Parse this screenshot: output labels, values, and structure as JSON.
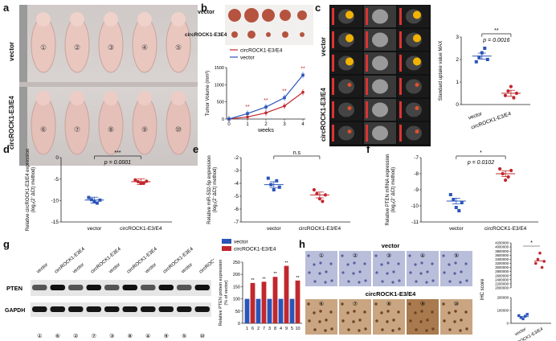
{
  "panels": {
    "a": {
      "label": "a",
      "group_top": "vector",
      "group_bottom": "circROCK1-E3/E4",
      "mouse_ids_top": [
        "①",
        "②",
        "③",
        "④",
        "⑤"
      ],
      "mouse_ids_bottom": [
        "⑥",
        "⑦",
        "⑧",
        "⑨",
        "⑩"
      ]
    },
    "b": {
      "label": "b",
      "photo_top": "vector",
      "photo_bottom": "circROCK1-E3E4"
    },
    "c": {
      "label": "c",
      "group_top": "vector",
      "group_bottom": "circROCK1-E3/E4"
    },
    "d": {
      "label": "d"
    },
    "e": {
      "label": "e"
    },
    "f": {
      "label": "f"
    },
    "g": {
      "label": "g",
      "lanes": [
        "vector",
        "circROCK1-E3E4",
        "vector",
        "circROCK1-E3E4",
        "vector",
        "circROCK1-E3E4",
        "vector",
        "circROCK1-E3E4",
        "vector",
        "circROCK1-E3E4"
      ],
      "proteins": [
        "PTEN",
        "GAPDH"
      ],
      "lane_ids": [
        "①",
        "⑥",
        "②",
        "⑦",
        "③",
        "⑧",
        "④",
        "⑨",
        "⑤",
        "⑩"
      ]
    },
    "h": {
      "label": "h",
      "group_top": "vector",
      "group_bottom": "circROCK1-E3/E4",
      "ids_top": [
        "①",
        "②",
        "③",
        "④",
        "⑤"
      ],
      "ids_bottom": [
        "⑥",
        "⑦",
        "⑧",
        "⑨",
        "⑩"
      ]
    }
  },
  "chart_data": [
    {
      "id": "b",
      "type": "line",
      "xlabel": "weeks",
      "ylabel": "Tumor Volume (mm³)",
      "x": [
        0,
        1,
        2,
        3,
        4
      ],
      "ylim": [
        0,
        1500
      ],
      "yticks": [
        0,
        500,
        1000,
        1500
      ],
      "series": [
        {
          "name": "circROCK1-E3/E4",
          "color": "#c0282d",
          "values": [
            0,
            60,
            180,
            380,
            780
          ]
        },
        {
          "name": "vector",
          "color": "#2a55b8",
          "values": [
            0,
            160,
            350,
            620,
            1280
          ]
        }
      ],
      "annotations": [
        "**",
        "**",
        "**",
        "**"
      ]
    },
    {
      "id": "c",
      "type": "scatter",
      "ylabel": "Standard uptake value MAX",
      "ylim": [
        0,
        3
      ],
      "yticks": [
        0,
        1,
        2,
        3
      ],
      "categories": [
        "vector",
        "circROCK1-E3/E4"
      ],
      "groups": [
        {
          "name": "vector",
          "color": "#2a55b8",
          "values": [
            1.9,
            2.1,
            2.3,
            2.5,
            2.0
          ],
          "mean": 2.15
        },
        {
          "name": "circROCK1-E3/E4",
          "color": "#c0282d",
          "values": [
            0.4,
            0.6,
            0.8,
            0.3,
            0.5
          ],
          "mean": 0.5
        }
      ],
      "stars": "**",
      "pvalue": "p = 0.0016"
    },
    {
      "id": "d",
      "type": "scatter",
      "ylabel": "Relative circROCK1-E3/E4 expression (log₂(2⁻ΔCt) method)",
      "ylim": [
        -15,
        0
      ],
      "yticks": [
        -15,
        -10,
        -5,
        0
      ],
      "categories": [
        "vector",
        "circROCK1-E3/E4"
      ],
      "groups": [
        {
          "name": "vector",
          "color": "#2a55b8",
          "values": [
            -9.3,
            -9.8,
            -10.3,
            -10.6,
            -9.9
          ],
          "mean": -9.9
        },
        {
          "name": "circROCK1-E3/E4",
          "color": "#c0282d",
          "values": [
            -5.2,
            -5.6,
            -6.0,
            -5.9,
            -5.5
          ],
          "mean": -5.6
        }
      ],
      "stars": "***",
      "pvalue": "p = 0.0001"
    },
    {
      "id": "e",
      "type": "scatter",
      "ylabel": "Relative miR-532-5p expression (log₂(2⁻ΔCt) method)",
      "ylim": [
        -7,
        -2
      ],
      "yticks": [
        -7,
        -6,
        -5,
        -4,
        -3,
        -2
      ],
      "categories": [
        "vector",
        "circROCK1-E3/E4"
      ],
      "groups": [
        {
          "name": "vector",
          "color": "#2a55b8",
          "values": [
            -3.6,
            -4.1,
            -4.5,
            -3.8,
            -4.3
          ],
          "mean": -4.1
        },
        {
          "name": "circROCK1-E3/E4",
          "color": "#c0282d",
          "values": [
            -4.5,
            -4.8,
            -5.2,
            -5.4,
            -4.9
          ],
          "mean": -4.9
        }
      ],
      "stars": "n.s",
      "pvalue": ""
    },
    {
      "id": "f",
      "type": "scatter",
      "ylabel": "Relative PTEN mRNA expression (log₂(2⁻ΔCt) method)",
      "ylim": [
        -11,
        -7
      ],
      "yticks": [
        -11,
        -10,
        -9,
        -8,
        -7
      ],
      "categories": [
        "vector",
        "circROCK1-E3/E4"
      ],
      "groups": [
        {
          "name": "vector",
          "color": "#2a55b8",
          "values": [
            -9.3,
            -9.6,
            -10.1,
            -10.3,
            -9.8
          ],
          "mean": -9.7
        },
        {
          "name": "circROCK1-E3/E4",
          "color": "#c0282d",
          "values": [
            -7.7,
            -8.0,
            -8.4,
            -8.2,
            -7.8
          ],
          "mean": -8.0
        }
      ],
      "stars": "*",
      "pvalue": "p = 0.0102"
    },
    {
      "id": "g",
      "type": "bar",
      "ylabel": "Relative PTEN protein expression (% of vector)",
      "ylim": [
        0,
        250
      ],
      "yticks": [
        0,
        50,
        100,
        150,
        200,
        250
      ],
      "categories": [
        "1",
        "6",
        "2",
        "7",
        "3",
        "8",
        "4",
        "9",
        "5",
        "10"
      ],
      "colors": [
        "#2a55b8",
        "#c0282d",
        "#2a55b8",
        "#c0282d",
        "#2a55b8",
        "#c0282d",
        "#2a55b8",
        "#c0282d",
        "#2a55b8",
        "#c0282d"
      ],
      "values": [
        100,
        165,
        100,
        170,
        100,
        190,
        100,
        235,
        100,
        175
      ],
      "stars": [
        "",
        "**",
        "",
        "**",
        "",
        "**",
        "",
        "**",
        "",
        "**"
      ],
      "legend": [
        {
          "name": "vector",
          "color": "#2a55b8"
        },
        {
          "name": "circROCK1-E3/E4",
          "color": "#c0282d"
        }
      ]
    },
    {
      "id": "h",
      "type": "scatter",
      "ylabel": "IHC score",
      "yticks_lower": [
        0,
        100000,
        200000
      ],
      "yticks_upper": [
        2000000,
        2200000,
        2400000,
        2600000,
        2800000,
        3000000,
        3200000,
        3400000,
        3600000,
        3800000,
        4000000,
        4200000
      ],
      "ytick_labels": [
        "0",
        "100000",
        "200000",
        "2000000",
        "2200000",
        "2400000",
        "2600000",
        "2800000",
        "3000000",
        "3200000",
        "3400000",
        "3600000",
        "3800000",
        "4000000",
        "4200000"
      ],
      "categories": [
        "vector",
        "circROCK1-E3/E4"
      ],
      "groups": [
        {
          "name": "vector",
          "color": "#2a55b8",
          "values": [
            60000,
            45000,
            35000,
            55000,
            70000
          ],
          "mean": 52000
        },
        {
          "name": "circROCK1-E3/E4",
          "color": "#c0282d",
          "values": [
            3200000,
            3400000,
            3700000,
            3000000,
            3300000
          ],
          "mean": 3320000
        }
      ],
      "stars": "*"
    }
  ]
}
